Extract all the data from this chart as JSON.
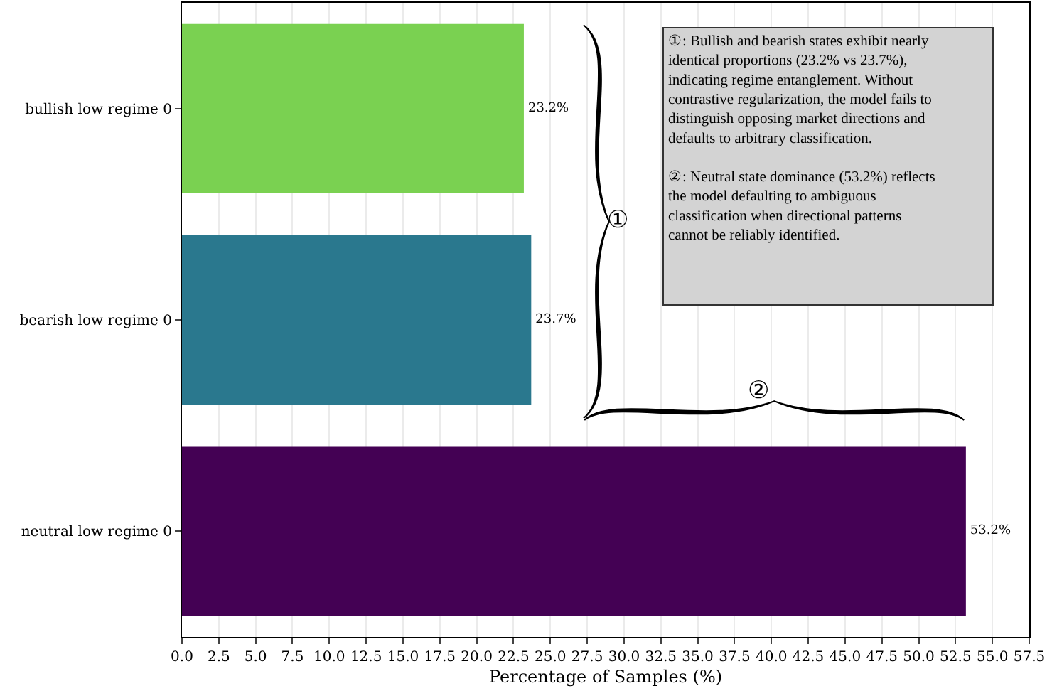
{
  "chart_data": {
    "type": "bar",
    "orientation": "horizontal",
    "xlabel": "Percentage of Samples (%)",
    "categories": [
      "bullish low regime 0",
      "bearish low regime 0",
      "neutral low regime 0"
    ],
    "values": [
      23.2,
      23.7,
      53.2
    ],
    "colors": [
      "#7ad151",
      "#2a788e",
      "#440154"
    ],
    "value_labels": [
      "23.2%",
      "23.7%",
      "53.2%"
    ],
    "xlim": [
      0,
      57.5
    ],
    "xticks": [
      {
        "value": 0,
        "label": "0.0"
      },
      {
        "value": 2.5,
        "label": "2.5"
      },
      {
        "value": 5,
        "label": "5.0"
      },
      {
        "value": 7.5,
        "label": "7.5"
      },
      {
        "value": 10,
        "label": "10.0"
      },
      {
        "value": 12.5,
        "label": "12.5"
      },
      {
        "value": 15,
        "label": "15.0"
      },
      {
        "value": 17.5,
        "label": "17.5"
      },
      {
        "value": 20,
        "label": "20.0"
      },
      {
        "value": 22.5,
        "label": "22.5"
      },
      {
        "value": 25,
        "label": "25.0"
      },
      {
        "value": 27.5,
        "label": "27.5"
      },
      {
        "value": 30,
        "label": "30.0"
      },
      {
        "value": 32.5,
        "label": "32.5"
      },
      {
        "value": 35,
        "label": "35.0"
      },
      {
        "value": 37.5,
        "label": "37.5"
      },
      {
        "value": 40,
        "label": "40.0"
      },
      {
        "value": 42.5,
        "label": "42.5"
      },
      {
        "value": 45,
        "label": "45.0"
      },
      {
        "value": 47.5,
        "label": "47.5"
      },
      {
        "value": 50,
        "label": "50.0"
      },
      {
        "value": 52.5,
        "label": "52.5"
      },
      {
        "value": 55,
        "label": "55.0"
      },
      {
        "value": 57.5,
        "label": "57.5"
      }
    ],
    "annotations": [
      "①",
      "②",
      "①: Bullish and bearish states exhibit nearly identical proportions (23.2% vs 23.7%), indicating regime entanglement. Without contrastive regularization, the model fails to distinguish opposing market directions and defaults to arbitrary classification.",
      "②: Neutral state dominance (53.2%) reflects the model defaulting to ambiguous classification when directional patterns cannot be reliably identified."
    ],
    "grid": "x",
    "legend": false
  }
}
